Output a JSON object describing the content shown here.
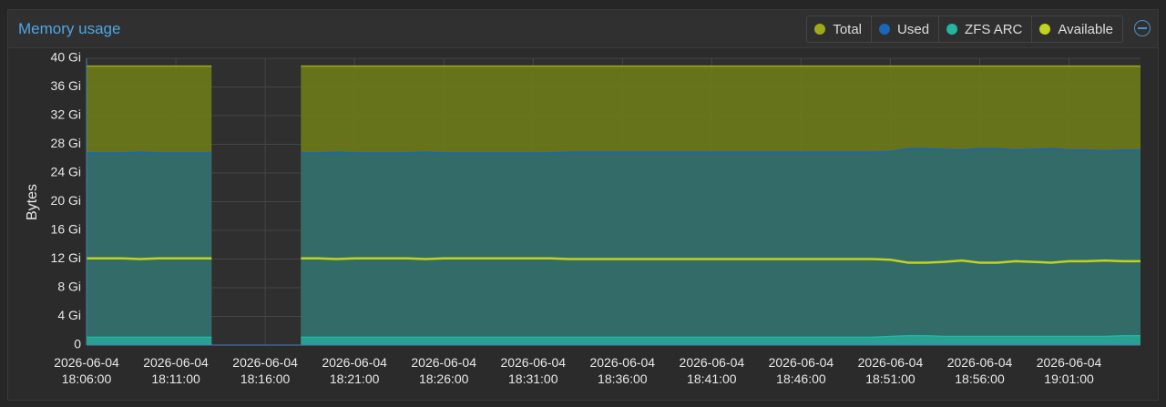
{
  "chart_data": {
    "type": "area",
    "title": "Memory usage",
    "y_label": "Bytes",
    "x": [
      "2026-06-04 18:06:00",
      "2026-06-04 18:07:00",
      "2026-06-04 18:08:00",
      "2026-06-04 18:09:00",
      "2026-06-04 18:10:00",
      "2026-06-04 18:11:00",
      "2026-06-04 18:12:00",
      "2026-06-04 18:13:00",
      "2026-06-04 18:14:00",
      "2026-06-04 18:15:00",
      "2026-06-04 18:16:00",
      "2026-06-04 18:17:00",
      "2026-06-04 18:18:00",
      "2026-06-04 18:19:00",
      "2026-06-04 18:20:00",
      "2026-06-04 18:21:00",
      "2026-06-04 18:22:00",
      "2026-06-04 18:23:00",
      "2026-06-04 18:24:00",
      "2026-06-04 18:25:00",
      "2026-06-04 18:26:00",
      "2026-06-04 18:27:00",
      "2026-06-04 18:28:00",
      "2026-06-04 18:29:00",
      "2026-06-04 18:30:00",
      "2026-06-04 18:31:00",
      "2026-06-04 18:32:00",
      "2026-06-04 18:33:00",
      "2026-06-04 18:34:00",
      "2026-06-04 18:35:00",
      "2026-06-04 18:36:00",
      "2026-06-04 18:37:00",
      "2026-06-04 18:38:00",
      "2026-06-04 18:39:00",
      "2026-06-04 18:40:00",
      "2026-06-04 18:41:00",
      "2026-06-04 18:42:00",
      "2026-06-04 18:43:00",
      "2026-06-04 18:44:00",
      "2026-06-04 18:45:00",
      "2026-06-04 18:46:00",
      "2026-06-04 18:47:00",
      "2026-06-04 18:48:00",
      "2026-06-04 18:49:00",
      "2026-06-04 18:50:00",
      "2026-06-04 18:51:00",
      "2026-06-04 18:52:00",
      "2026-06-04 18:53:00",
      "2026-06-04 18:54:00",
      "2026-06-04 18:55:00",
      "2026-06-04 18:56:00",
      "2026-06-04 18:57:00",
      "2026-06-04 18:58:00",
      "2026-06-04 18:59:00",
      "2026-06-04 19:00:00",
      "2026-06-04 19:01:00",
      "2026-06-04 19:02:00",
      "2026-06-04 19:03:00",
      "2026-06-04 19:04:00",
      "2026-06-04 19:05:00"
    ],
    "series": [
      {
        "name": "Total",
        "color": "#9fa91a",
        "fill": "#6b7a19",
        "values": [
          38.9,
          38.9,
          38.9,
          38.9,
          38.9,
          38.9,
          38.9,
          38.9,
          null,
          null,
          null,
          null,
          38.9,
          38.9,
          38.9,
          38.9,
          38.9,
          38.9,
          38.9,
          38.9,
          38.9,
          38.9,
          38.9,
          38.9,
          38.9,
          38.9,
          38.9,
          38.9,
          38.9,
          38.9,
          38.9,
          38.9,
          38.9,
          38.9,
          38.9,
          38.9,
          38.9,
          38.9,
          38.9,
          38.9,
          38.9,
          38.9,
          38.9,
          38.9,
          38.9,
          38.9,
          38.9,
          38.9,
          38.9,
          38.9,
          38.9,
          38.9,
          38.9,
          38.9,
          38.9,
          38.9,
          38.9,
          38.9,
          38.9,
          38.9
        ]
      },
      {
        "name": "Used",
        "color": "#1a66b8",
        "fill": "#2f6a6f",
        "values": [
          26.8,
          26.8,
          26.8,
          26.9,
          26.8,
          26.8,
          26.8,
          26.8,
          null,
          null,
          null,
          null,
          26.8,
          26.8,
          26.9,
          26.8,
          26.8,
          26.8,
          26.8,
          26.9,
          26.8,
          26.8,
          26.8,
          26.8,
          26.8,
          26.8,
          26.8,
          26.9,
          26.9,
          26.9,
          26.9,
          26.9,
          26.9,
          26.9,
          26.9,
          26.9,
          26.9,
          26.9,
          26.9,
          26.9,
          26.9,
          26.9,
          26.9,
          26.9,
          26.9,
          27.0,
          27.4,
          27.4,
          27.3,
          27.2,
          27.4,
          27.4,
          27.2,
          27.3,
          27.4,
          27.2,
          27.2,
          27.1,
          27.2,
          27.2
        ]
      },
      {
        "name": "ZFS ARC",
        "color": "#26b5a0",
        "fill": "#27a596",
        "values": [
          1.1,
          1.1,
          1.1,
          1.1,
          1.1,
          1.1,
          1.1,
          1.1,
          null,
          null,
          null,
          null,
          1.1,
          1.1,
          1.1,
          1.1,
          1.1,
          1.1,
          1.1,
          1.1,
          1.1,
          1.1,
          1.1,
          1.1,
          1.1,
          1.1,
          1.1,
          1.1,
          1.1,
          1.1,
          1.1,
          1.1,
          1.1,
          1.1,
          1.1,
          1.1,
          1.1,
          1.1,
          1.1,
          1.1,
          1.1,
          1.1,
          1.1,
          1.1,
          1.1,
          1.2,
          1.3,
          1.3,
          1.2,
          1.2,
          1.2,
          1.2,
          1.2,
          1.2,
          1.2,
          1.2,
          1.2,
          1.2,
          1.3,
          1.3
        ]
      },
      {
        "name": "Available",
        "color": "#c3d21b",
        "values": [
          12.1,
          12.1,
          12.1,
          12.0,
          12.1,
          12.1,
          12.1,
          12.1,
          null,
          null,
          null,
          null,
          12.1,
          12.1,
          12.0,
          12.1,
          12.1,
          12.1,
          12.1,
          12.0,
          12.1,
          12.1,
          12.1,
          12.1,
          12.1,
          12.1,
          12.1,
          12.0,
          12.0,
          12.0,
          12.0,
          12.0,
          12.0,
          12.0,
          12.0,
          12.0,
          12.0,
          12.0,
          12.0,
          12.0,
          12.0,
          12.0,
          12.0,
          12.0,
          12.0,
          11.9,
          11.5,
          11.5,
          11.6,
          11.8,
          11.5,
          11.5,
          11.7,
          11.6,
          11.5,
          11.7,
          11.7,
          11.8,
          11.7,
          11.7
        ]
      }
    ],
    "xlim": [
      "2026-06-04 18:06:00",
      "2026-06-04 19:05:00"
    ],
    "xticks": [
      "2026-06-04 18:06:00",
      "2026-06-04 18:11:00",
      "2026-06-04 18:16:00",
      "2026-06-04 18:21:00",
      "2026-06-04 18:26:00",
      "2026-06-04 18:31:00",
      "2026-06-04 18:36:00",
      "2026-06-04 18:41:00",
      "2026-06-04 18:46:00",
      "2026-06-04 18:51:00",
      "2026-06-04 18:56:00",
      "2026-06-04 19:01:00"
    ],
    "ylim": [
      0,
      40
    ],
    "yticks": [
      0,
      {
        "value": 4,
        "label": "4 Gi"
      },
      {
        "value": 8,
        "label": "8 Gi"
      },
      {
        "value": 12,
        "label": "12 Gi"
      },
      {
        "value": 16,
        "label": "16 Gi"
      },
      {
        "value": 20,
        "label": "20 Gi"
      },
      {
        "value": 24,
        "label": "24 Gi"
      },
      {
        "value": 28,
        "label": "28 Gi"
      },
      {
        "value": 32,
        "label": "32 Gi"
      },
      {
        "value": 36,
        "label": "36 Gi"
      },
      {
        "value": 40,
        "label": "40 Gi"
      }
    ],
    "grid": true
  }
}
